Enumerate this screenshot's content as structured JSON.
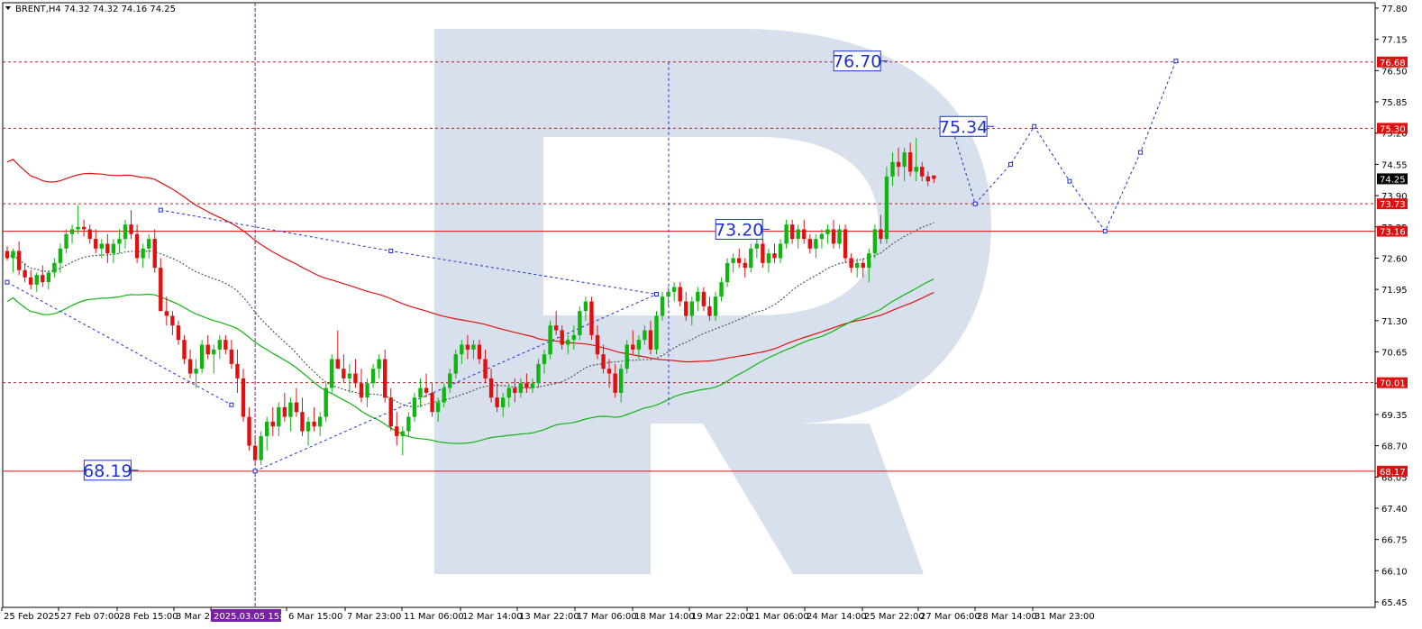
{
  "header": {
    "title": "BRENT,H4  74.32 74.32 74.16 74.25"
  },
  "colors": {
    "red": "#e01010",
    "green": "#10b510",
    "blue": "#1c2fd6",
    "grid": "#000000",
    "watermark": "#d7e0ec"
  },
  "chart_data": {
    "type": "candlestick",
    "symbol": "BRENT",
    "timeframe": "H4",
    "last_bar": {
      "open": 74.32,
      "high": 74.32,
      "low": 74.16,
      "close": 74.25
    },
    "ylim": [
      65.45,
      77.9
    ],
    "y_ticks": [
      "77.80",
      "77.15",
      "76.50",
      "75.85",
      "75.20",
      "74.55",
      "73.90",
      "73.25",
      "72.60",
      "71.95",
      "71.30",
      "70.65",
      "70.00",
      "69.35",
      "68.70",
      "68.05",
      "67.40",
      "66.75",
      "66.10",
      "65.45"
    ],
    "x_ticks": [
      "25 Feb 2025",
      "27 Feb 07:00",
      "28 Feb 15:00",
      "3 Mar 23:00",
      "2025.03.05 15:00",
      "6 Mar 15:00",
      "7 Mar 23:00",
      "11 Mar 06:00",
      "12 Mar 14:00",
      "13 Mar 22:00",
      "17 Mar 06:00",
      "18 Mar 14:00",
      "19 Mar 22:00",
      "21 Mar 06:00",
      "24 Mar 14:00",
      "25 Mar 22:00",
      "27 Mar 06:00",
      "28 Mar 14:00",
      "31 Mar 23:00"
    ],
    "price_tags": [
      {
        "value": 76.68,
        "label": "76.68",
        "color": "red"
      },
      {
        "value": 75.3,
        "label": "75.30",
        "color": "red"
      },
      {
        "value": 74.25,
        "label": "74.25",
        "color": "black"
      },
      {
        "value": 73.73,
        "label": "73.73",
        "color": "red"
      },
      {
        "value": 73.16,
        "label": "73.16",
        "color": "red"
      },
      {
        "value": 70.01,
        "label": "70.01",
        "color": "red"
      },
      {
        "value": 68.17,
        "label": "68.17",
        "color": "red"
      }
    ],
    "horizontal_levels": [
      {
        "value": 76.68,
        "style": "dotted"
      },
      {
        "value": 75.3,
        "style": "dotted"
      },
      {
        "value": 73.73,
        "style": "dotted"
      },
      {
        "value": 73.16,
        "style": "solid"
      },
      {
        "value": 70.01,
        "style": "dotted"
      },
      {
        "value": 68.17,
        "style": "solid"
      }
    ],
    "level_labels": [
      {
        "text": "76.70",
        "value": 76.7,
        "bar": 144
      },
      {
        "text": "75.34",
        "value": 75.34,
        "bar": 162
      },
      {
        "text": "73.20",
        "value": 73.2,
        "bar": 124
      },
      {
        "text": "68.19",
        "value": 68.19,
        "bar": 17
      }
    ],
    "vertical_marker_bar": 42,
    "candles_ohlc": [
      [
        72.75,
        72.85,
        72.55,
        72.6
      ],
      [
        72.6,
        72.8,
        72.3,
        72.75
      ],
      [
        72.75,
        72.95,
        72.25,
        72.35
      ],
      [
        72.35,
        72.5,
        72.1,
        72.2
      ],
      [
        72.2,
        72.35,
        71.95,
        72.05
      ],
      [
        72.05,
        72.3,
        71.9,
        72.25
      ],
      [
        72.25,
        72.45,
        72.0,
        72.1
      ],
      [
        72.1,
        72.35,
        71.95,
        72.3
      ],
      [
        72.3,
        72.6,
        72.2,
        72.5
      ],
      [
        72.5,
        72.9,
        72.3,
        72.8
      ],
      [
        72.8,
        73.2,
        72.7,
        73.1
      ],
      [
        73.1,
        73.3,
        72.9,
        73.2
      ],
      [
        73.2,
        73.7,
        73.1,
        73.25
      ],
      [
        73.25,
        73.4,
        73.05,
        73.2
      ],
      [
        73.2,
        73.3,
        72.9,
        73.0
      ],
      [
        73.0,
        73.2,
        72.7,
        72.8
      ],
      [
        72.8,
        73.0,
        72.6,
        72.9
      ],
      [
        72.9,
        73.1,
        72.5,
        72.7
      ],
      [
        72.7,
        73.0,
        72.5,
        72.9
      ],
      [
        72.9,
        73.2,
        72.7,
        73.0
      ],
      [
        73.0,
        73.4,
        72.8,
        73.3
      ],
      [
        73.3,
        73.6,
        73.0,
        73.1
      ],
      [
        73.1,
        73.3,
        72.5,
        72.6
      ],
      [
        72.6,
        72.9,
        72.4,
        72.8
      ],
      [
        72.8,
        73.1,
        72.6,
        73.0
      ],
      [
        73.0,
        73.2,
        72.3,
        72.4
      ],
      [
        72.4,
        72.6,
        71.9,
        71.5
      ],
      [
        71.5,
        71.8,
        71.2,
        71.4
      ],
      [
        71.4,
        71.5,
        71.0,
        71.2
      ],
      [
        71.2,
        71.3,
        70.8,
        70.9
      ],
      [
        70.9,
        71.0,
        70.4,
        70.5
      ],
      [
        70.5,
        70.7,
        70.1,
        70.2
      ],
      [
        70.2,
        70.5,
        69.9,
        70.3
      ],
      [
        70.3,
        70.9,
        70.2,
        70.8
      ],
      [
        70.8,
        71.0,
        70.5,
        70.6
      ],
      [
        70.6,
        70.8,
        70.2,
        70.7
      ],
      [
        70.7,
        71.0,
        70.5,
        70.9
      ],
      [
        70.9,
        71.0,
        70.6,
        70.7
      ],
      [
        70.7,
        70.9,
        70.3,
        70.4
      ],
      [
        70.4,
        70.7,
        69.8,
        70.1
      ],
      [
        70.1,
        70.3,
        69.2,
        69.3
      ],
      [
        69.3,
        69.5,
        68.6,
        68.7
      ],
      [
        68.7,
        68.9,
        68.3,
        68.4
      ],
      [
        68.4,
        69.0,
        68.3,
        68.9
      ],
      [
        68.9,
        69.3,
        68.6,
        69.2
      ],
      [
        69.2,
        69.5,
        68.9,
        69.1
      ],
      [
        69.1,
        69.6,
        68.9,
        69.5
      ],
      [
        69.5,
        69.8,
        69.2,
        69.3
      ],
      [
        69.3,
        69.7,
        69.0,
        69.6
      ],
      [
        69.6,
        69.9,
        69.3,
        69.4
      ],
      [
        69.4,
        69.7,
        68.9,
        69.0
      ],
      [
        69.0,
        69.3,
        68.7,
        69.2
      ],
      [
        69.2,
        69.5,
        69.0,
        69.1
      ],
      [
        69.1,
        69.4,
        68.9,
        69.3
      ],
      [
        69.3,
        70.0,
        69.2,
        69.9
      ],
      [
        69.9,
        70.6,
        69.8,
        70.5
      ],
      [
        70.5,
        71.1,
        70.3,
        70.3
      ],
      [
        70.3,
        70.6,
        70.0,
        70.1
      ],
      [
        70.1,
        70.4,
        69.8,
        70.2
      ],
      [
        70.2,
        70.5,
        69.9,
        70.0
      ],
      [
        70.0,
        70.3,
        69.6,
        69.7
      ],
      [
        69.7,
        70.1,
        69.5,
        70.0
      ],
      [
        70.0,
        70.4,
        69.9,
        70.3
      ],
      [
        70.3,
        70.6,
        70.1,
        70.5
      ],
      [
        70.5,
        70.7,
        69.6,
        69.7
      ],
      [
        69.7,
        69.9,
        69.0,
        69.1
      ],
      [
        69.1,
        69.4,
        68.7,
        68.9
      ],
      [
        68.9,
        69.1,
        68.5,
        69.0
      ],
      [
        69.0,
        69.4,
        68.9,
        69.3
      ],
      [
        69.3,
        69.8,
        69.2,
        69.7
      ],
      [
        69.7,
        70.1,
        69.5,
        69.9
      ],
      [
        69.9,
        70.2,
        69.7,
        69.8
      ],
      [
        69.8,
        70.0,
        69.3,
        69.4
      ],
      [
        69.4,
        69.7,
        69.2,
        69.6
      ],
      [
        69.6,
        70.0,
        69.5,
        69.9
      ],
      [
        69.9,
        70.3,
        69.8,
        70.2
      ],
      [
        70.2,
        70.7,
        70.1,
        70.6
      ],
      [
        70.6,
        70.9,
        70.4,
        70.8
      ],
      [
        70.8,
        71.0,
        70.5,
        70.7
      ],
      [
        70.7,
        70.9,
        70.5,
        70.8
      ],
      [
        70.8,
        70.9,
        70.4,
        70.5
      ],
      [
        70.5,
        70.7,
        70.0,
        70.1
      ],
      [
        70.1,
        70.3,
        69.6,
        69.7
      ],
      [
        69.7,
        70.0,
        69.4,
        69.5
      ],
      [
        69.5,
        69.8,
        69.3,
        69.7
      ],
      [
        69.7,
        70.0,
        69.5,
        69.9
      ],
      [
        69.9,
        70.1,
        69.6,
        69.8
      ],
      [
        69.8,
        70.1,
        69.7,
        70.0
      ],
      [
        70.0,
        70.2,
        69.8,
        69.9
      ],
      [
        69.9,
        70.1,
        69.8,
        70.0
      ],
      [
        70.0,
        70.5,
        69.9,
        70.4
      ],
      [
        70.4,
        70.7,
        70.2,
        70.6
      ],
      [
        70.6,
        71.3,
        70.5,
        71.2
      ],
      [
        71.2,
        71.5,
        71.0,
        71.1
      ],
      [
        71.1,
        71.2,
        70.7,
        70.8
      ],
      [
        70.8,
        71.0,
        70.6,
        70.9
      ],
      [
        70.9,
        71.2,
        70.7,
        71.0
      ],
      [
        71.0,
        71.6,
        70.9,
        71.5
      ],
      [
        71.5,
        71.8,
        71.3,
        71.7
      ],
      [
        71.7,
        71.8,
        70.9,
        71.0
      ],
      [
        71.0,
        71.2,
        70.5,
        70.6
      ],
      [
        70.6,
        70.8,
        70.2,
        70.3
      ],
      [
        70.3,
        70.5,
        69.9,
        70.2
      ],
      [
        70.2,
        70.4,
        69.7,
        69.8
      ],
      [
        69.8,
        70.4,
        69.6,
        70.3
      ],
      [
        70.3,
        70.9,
        70.2,
        70.8
      ],
      [
        70.8,
        71.1,
        70.6,
        70.7
      ],
      [
        70.7,
        71.0,
        70.5,
        70.9
      ],
      [
        70.9,
        71.2,
        70.8,
        71.1
      ],
      [
        71.1,
        71.3,
        70.6,
        70.7
      ],
      [
        70.7,
        71.5,
        70.6,
        71.4
      ],
      [
        71.4,
        71.9,
        71.3,
        71.8
      ],
      [
        71.8,
        72.0,
        71.6,
        71.9
      ],
      [
        71.9,
        72.1,
        71.7,
        72.0
      ],
      [
        72.0,
        72.1,
        71.6,
        71.7
      ],
      [
        71.7,
        71.9,
        71.3,
        71.4
      ],
      [
        71.4,
        71.8,
        71.2,
        71.7
      ],
      [
        71.7,
        72.0,
        71.5,
        71.9
      ],
      [
        71.9,
        72.0,
        71.5,
        71.6
      ],
      [
        71.6,
        71.8,
        71.3,
        71.4
      ],
      [
        71.4,
        71.9,
        71.3,
        71.8
      ],
      [
        71.8,
        72.2,
        71.7,
        72.1
      ],
      [
        72.1,
        72.6,
        72.0,
        72.5
      ],
      [
        72.5,
        72.7,
        72.3,
        72.6
      ],
      [
        72.6,
        72.8,
        72.4,
        72.5
      ],
      [
        72.5,
        72.6,
        72.2,
        72.4
      ],
      [
        72.4,
        72.9,
        72.3,
        72.8
      ],
      [
        72.8,
        73.1,
        72.6,
        72.9
      ],
      [
        72.9,
        73.0,
        72.4,
        72.5
      ],
      [
        72.5,
        72.8,
        72.3,
        72.7
      ],
      [
        72.7,
        72.9,
        72.5,
        72.6
      ],
      [
        72.6,
        73.0,
        72.5,
        72.9
      ],
      [
        72.9,
        73.4,
        72.8,
        73.3
      ],
      [
        73.3,
        73.4,
        72.9,
        73.0
      ],
      [
        73.0,
        73.3,
        72.8,
        73.2
      ],
      [
        73.2,
        73.4,
        72.9,
        73.0
      ],
      [
        73.0,
        73.1,
        72.7,
        72.8
      ],
      [
        72.8,
        73.1,
        72.6,
        73.0
      ],
      [
        73.0,
        73.2,
        72.8,
        73.1
      ],
      [
        73.1,
        73.3,
        72.9,
        73.2
      ],
      [
        73.2,
        73.4,
        72.8,
        72.9
      ],
      [
        72.9,
        73.3,
        72.8,
        73.2
      ],
      [
        73.2,
        73.3,
        72.5,
        72.6
      ],
      [
        72.6,
        72.7,
        72.3,
        72.4
      ],
      [
        72.4,
        72.6,
        72.2,
        72.5
      ],
      [
        72.5,
        72.6,
        72.2,
        72.4
      ],
      [
        72.4,
        72.8,
        72.1,
        72.7
      ],
      [
        72.7,
        73.3,
        72.6,
        73.2
      ],
      [
        73.2,
        73.5,
        72.9,
        73.0
      ],
      [
        73.0,
        74.5,
        72.9,
        74.3
      ],
      [
        74.3,
        74.8,
        74.1,
        74.6
      ],
      [
        74.6,
        74.9,
        74.3,
        74.5
      ],
      [
        74.5,
        74.9,
        74.2,
        74.8
      ],
      [
        74.8,
        75.0,
        74.3,
        74.4
      ],
      [
        74.4,
        75.1,
        74.2,
        74.5
      ],
      [
        74.5,
        74.6,
        74.2,
        74.3
      ],
      [
        74.3,
        74.4,
        74.1,
        74.2
      ],
      [
        74.32,
        74.32,
        74.16,
        74.25
      ]
    ],
    "forecast_path": [
      [
        160,
        75.34
      ],
      [
        164,
        73.73
      ],
      [
        170,
        74.55
      ],
      [
        174,
        75.34
      ],
      [
        180,
        74.2
      ],
      [
        186,
        73.16
      ],
      [
        192,
        74.8
      ],
      [
        198,
        76.7
      ]
    ],
    "support_path": [
      [
        42,
        68.17
      ],
      [
        110,
        71.85
      ]
    ],
    "resistance_path": [
      [
        26,
        73.6
      ],
      [
        65,
        72.75
      ],
      [
        110,
        71.85
      ]
    ],
    "channel_path": [
      [
        0,
        72.1
      ],
      [
        38,
        69.55
      ]
    ]
  }
}
